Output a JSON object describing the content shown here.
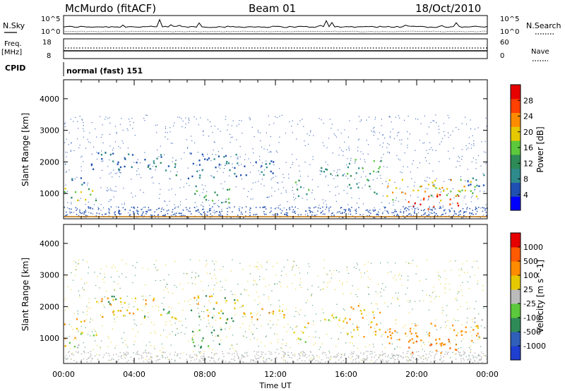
{
  "header": {
    "station": "McMurdo (fitACF)",
    "beam": "Beam 01",
    "date": "18/Oct/2010"
  },
  "top_panels": {
    "nsky_label": "N.Sky",
    "nsearch_label": "N.Search",
    "nsky_ticks": [
      "10^5",
      "10^0"
    ],
    "nsearch_ticks": [
      "10^5",
      "10^0"
    ],
    "freq_label": "Freq.",
    "freq_unit": "[MHz]",
    "freq_ticks": [
      "18",
      "8"
    ],
    "nave_label": "Nave",
    "nave_ticks": [
      "60",
      "0"
    ],
    "cpid_label": "CPID",
    "cpid_value": "normal (fast) 151"
  },
  "chart_data": [
    {
      "type": "heatmap",
      "name": "power",
      "ylabel": "Slant Range [km]",
      "yticks": [
        "4000",
        "3000",
        "2000",
        "1000"
      ],
      "ylim": [
        200,
        4600
      ],
      "xlim": [
        "00:00",
        "24:00"
      ],
      "colorbar_label": "Power [dB]",
      "colorbar_ticks": [
        "28",
        "24",
        "20",
        "16",
        "12",
        "8",
        "4"
      ],
      "colorbar_range": [
        0,
        32
      ],
      "colors": [
        "#0000ff",
        "#1f4fb0",
        "#2e8b8b",
        "#2e8b57",
        "#5cc83c",
        "#e6c800",
        "#ff8c00",
        "#ff4000",
        "#e60000"
      ]
    },
    {
      "type": "heatmap",
      "name": "velocity",
      "ylabel": "Slant Range [km]",
      "yticks": [
        "4000",
        "3000",
        "2000",
        "1000"
      ],
      "ylim": [
        200,
        4600
      ],
      "xlim": [
        "00:00",
        "24:00"
      ],
      "xlabel": "Time UT",
      "xticks": [
        "00:00",
        "04:00",
        "08:00",
        "12:00",
        "16:00",
        "20:00",
        "00:00"
      ],
      "colorbar_label": "Velocity [m s^-1]",
      "colorbar_ticks": [
        "1000",
        "500",
        "100",
        "25",
        "-25",
        "-100",
        "-500",
        "-1000"
      ],
      "colors": [
        "#1f3fd0",
        "#2f5fb8",
        "#2e8b57",
        "#5cc83c",
        "#bbbbbb",
        "#e6c800",
        "#ff8c00",
        "#ff5a00",
        "#e60000"
      ]
    }
  ]
}
